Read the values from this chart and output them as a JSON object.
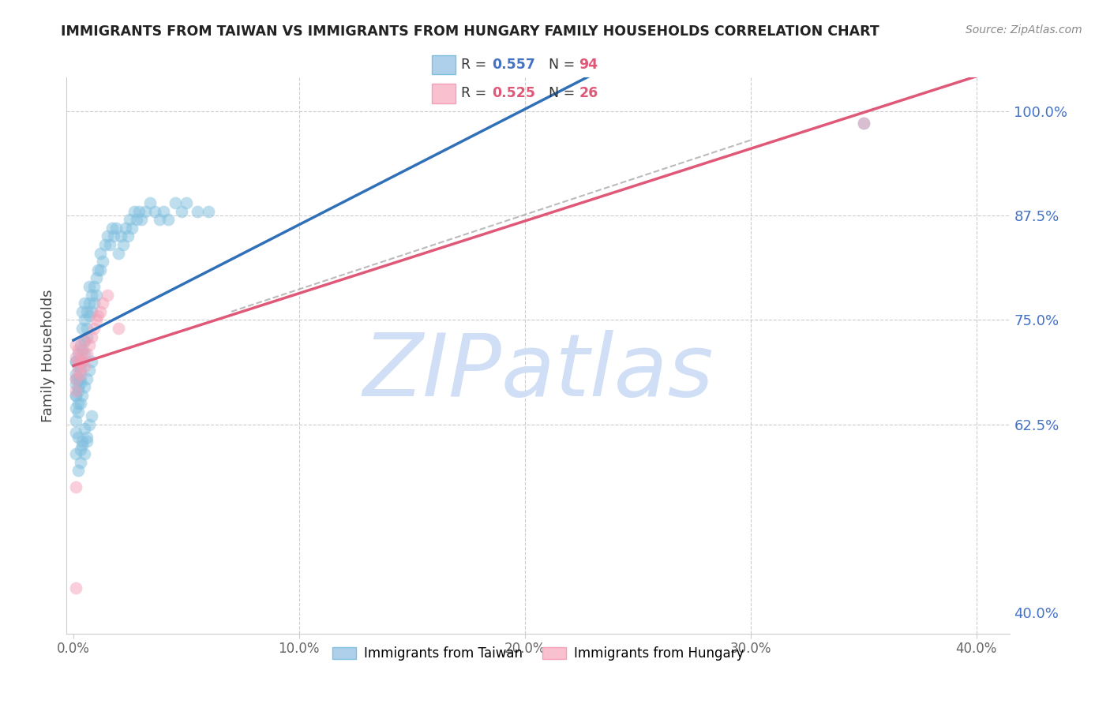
{
  "title": "IMMIGRANTS FROM TAIWAN VS IMMIGRANTS FROM HUNGARY FAMILY HOUSEHOLDS CORRELATION CHART",
  "source": "Source: ZipAtlas.com",
  "xlabel_ticks": [
    "0.0%",
    "10.0%",
    "20.0%",
    "30.0%",
    "40.0%"
  ],
  "xlabel_values": [
    0.0,
    0.1,
    0.2,
    0.3,
    0.4
  ],
  "ylabel": "Family Households",
  "ylabel_right_ticks": [
    "100.0%",
    "87.5%",
    "75.0%",
    "62.5%",
    "40.0%"
  ],
  "ylabel_right_values": [
    1.0,
    0.875,
    0.75,
    0.625,
    0.4
  ],
  "ylim": [
    0.375,
    1.04
  ],
  "xlim": [
    -0.003,
    0.415
  ],
  "taiwan_R": 0.557,
  "taiwan_N": 94,
  "hungary_R": 0.525,
  "hungary_N": 26,
  "taiwan_color": "#7fbfdf",
  "hungary_color": "#f4a0b8",
  "taiwan_line_color": "#3070b8",
  "hungary_line_color": "#e05878",
  "watermark_text": "ZIPatlas",
  "watermark_color": "#d0dff5",
  "legend_taiwan_label": "Immigrants from Taiwan",
  "legend_hungary_label": "Immigrants from Hungary",
  "grid_color": "#cccccc",
  "taiwan_x": [
    0.001,
    0.001,
    0.001,
    0.001,
    0.001,
    0.001,
    0.001,
    0.002,
    0.002,
    0.002,
    0.002,
    0.002,
    0.002,
    0.003,
    0.003,
    0.003,
    0.003,
    0.003,
    0.004,
    0.004,
    0.004,
    0.004,
    0.005,
    0.005,
    0.005,
    0.005,
    0.006,
    0.006,
    0.006,
    0.007,
    0.007,
    0.007,
    0.008,
    0.008,
    0.009,
    0.009,
    0.01,
    0.01,
    0.011,
    0.012,
    0.012,
    0.013,
    0.014,
    0.015,
    0.016,
    0.017,
    0.018,
    0.019,
    0.02,
    0.021,
    0.022,
    0.023,
    0.024,
    0.025,
    0.026,
    0.027,
    0.028,
    0.029,
    0.03,
    0.032,
    0.034,
    0.036,
    0.038,
    0.04,
    0.042,
    0.045,
    0.048,
    0.05,
    0.055,
    0.06,
    0.001,
    0.002,
    0.003,
    0.004,
    0.005,
    0.006,
    0.007,
    0.008,
    0.002,
    0.003,
    0.004,
    0.005,
    0.006,
    0.35,
    0.001,
    0.001,
    0.001,
    0.002,
    0.003,
    0.004,
    0.005,
    0.006,
    0.007,
    0.008
  ],
  "taiwan_y": [
    0.7,
    0.685,
    0.673,
    0.66,
    0.645,
    0.63,
    0.615,
    0.695,
    0.68,
    0.665,
    0.65,
    0.64,
    0.71,
    0.69,
    0.675,
    0.72,
    0.7,
    0.68,
    0.715,
    0.7,
    0.74,
    0.76,
    0.725,
    0.71,
    0.75,
    0.77,
    0.73,
    0.76,
    0.74,
    0.755,
    0.77,
    0.79,
    0.76,
    0.78,
    0.77,
    0.79,
    0.78,
    0.8,
    0.81,
    0.81,
    0.83,
    0.82,
    0.84,
    0.85,
    0.84,
    0.86,
    0.85,
    0.86,
    0.83,
    0.85,
    0.84,
    0.86,
    0.85,
    0.87,
    0.86,
    0.88,
    0.87,
    0.88,
    0.87,
    0.88,
    0.89,
    0.88,
    0.87,
    0.88,
    0.87,
    0.89,
    0.88,
    0.89,
    0.88,
    0.88,
    0.59,
    0.61,
    0.595,
    0.605,
    0.62,
    0.61,
    0.625,
    0.635,
    0.57,
    0.58,
    0.6,
    0.59,
    0.605,
    0.985,
    0.7,
    0.68,
    0.66,
    0.67,
    0.65,
    0.66,
    0.67,
    0.68,
    0.69,
    0.7
  ],
  "hungary_x": [
    0.001,
    0.001,
    0.001,
    0.001,
    0.002,
    0.002,
    0.002,
    0.003,
    0.003,
    0.004,
    0.004,
    0.005,
    0.005,
    0.006,
    0.007,
    0.008,
    0.009,
    0.01,
    0.011,
    0.012,
    0.013,
    0.015,
    0.35,
    0.001,
    0.001,
    0.02
  ],
  "hungary_y": [
    0.68,
    0.665,
    0.72,
    0.705,
    0.69,
    0.7,
    0.715,
    0.7,
    0.685,
    0.71,
    0.7,
    0.695,
    0.725,
    0.71,
    0.72,
    0.73,
    0.74,
    0.75,
    0.755,
    0.76,
    0.77,
    0.78,
    0.985,
    0.55,
    0.43,
    0.74
  ],
  "dashed_line_x": [
    0.07,
    0.3
  ],
  "dashed_line_y": [
    0.76,
    0.965
  ]
}
